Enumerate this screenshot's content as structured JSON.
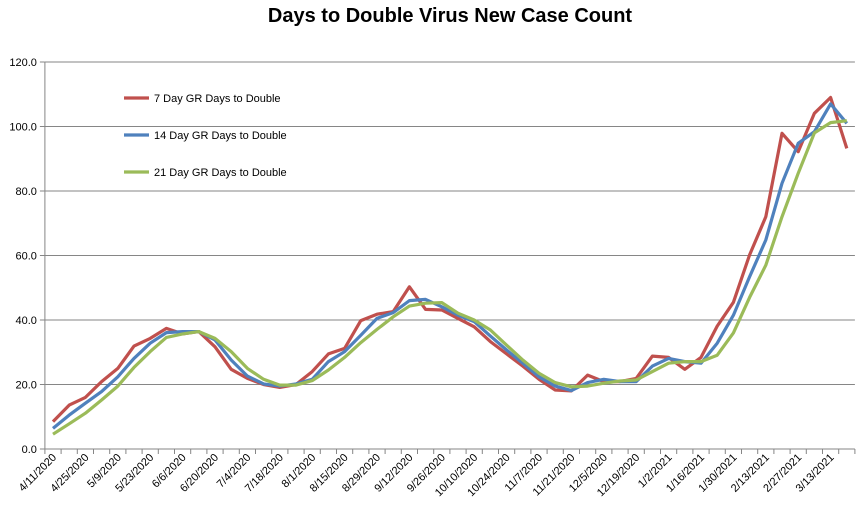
{
  "chart_data": {
    "type": "line",
    "title": "Days to Double Virus New Case Count",
    "xlabel": "",
    "ylabel": "",
    "ylim": [
      0,
      120
    ],
    "yticks": [
      "0.0",
      "20.0",
      "40.0",
      "60.0",
      "80.0",
      "100.0",
      "120.0"
    ],
    "grid": true,
    "legend_position": "top-left inside",
    "x_tick_labels": [
      "4/11/2020",
      "4/25/2020",
      "5/9/2020",
      "5/23/2020",
      "6/6/2020",
      "6/20/2020",
      "7/4/2020",
      "7/18/2020",
      "8/1/2020",
      "8/15/2020",
      "8/29/2020",
      "9/12/2020",
      "9/26/2020",
      "10/10/2020",
      "10/24/2020",
      "11/7/2020",
      "11/21/2020",
      "12/5/2020",
      "12/19/2020",
      "1/2/2021",
      "1/16/2021",
      "1/30/2021",
      "2/13/2021",
      "2/27/2021",
      "3/13/2021"
    ],
    "point_count": 50,
    "series": [
      {
        "name": "7 Day GR Days to Double",
        "color": "#c0504d",
        "values": [
          8.5,
          13.6,
          16,
          20.9,
          25,
          31.9,
          34.3,
          37.4,
          35.7,
          36.4,
          31.7,
          24.7,
          21.9,
          20,
          19.1,
          20,
          24,
          29.5,
          31.2,
          39.8,
          41.8,
          42.6,
          50.3,
          43.3,
          43.1,
          40.5,
          37.9,
          33.3,
          29.5,
          25.7,
          21.6,
          18.3,
          18,
          22.9,
          20.9,
          20.9,
          21.9,
          28.8,
          28.4,
          24.7,
          28.4,
          38.1,
          45.5,
          60.2,
          72,
          97.9,
          92.2,
          104.1,
          109,
          93.2
        ]
      },
      {
        "name": "14 Day GR Days to Double",
        "color": "#4f81bd",
        "values": [
          6.4,
          10.5,
          14.2,
          17.8,
          22.4,
          28.1,
          32.8,
          36.1,
          36.4,
          36.4,
          33.8,
          27.6,
          22.6,
          20.2,
          19.5,
          20.2,
          21.6,
          27.1,
          30.2,
          35.3,
          40.5,
          42.3,
          46,
          46.4,
          44.1,
          41.5,
          39.5,
          35,
          30.7,
          26.6,
          22.4,
          19.5,
          18.1,
          20.6,
          21.6,
          20.9,
          20.9,
          25.7,
          28.1,
          27.1,
          26.6,
          32.8,
          41.5,
          53.4,
          64.8,
          82.4,
          94.8,
          98.4,
          107,
          101
        ]
      },
      {
        "name": "21 Day GR Days to Double",
        "color": "#9bbb59",
        "values": [
          4.6,
          7.8,
          11.1,
          15.2,
          19.5,
          25.3,
          30.2,
          34.6,
          35.7,
          36.4,
          34.3,
          30.2,
          25,
          21.6,
          19.8,
          19.8,
          21.2,
          24.5,
          28.4,
          33,
          37.1,
          41,
          44.3,
          45.2,
          45.4,
          42.1,
          40,
          36.9,
          32.2,
          27.6,
          23.5,
          20.6,
          19.3,
          19.5,
          20.4,
          21.1,
          21.4,
          24,
          26.6,
          27.1,
          27.1,
          29.1,
          36,
          47,
          57,
          72,
          85.5,
          98,
          101.2,
          101.8
        ]
      }
    ]
  }
}
